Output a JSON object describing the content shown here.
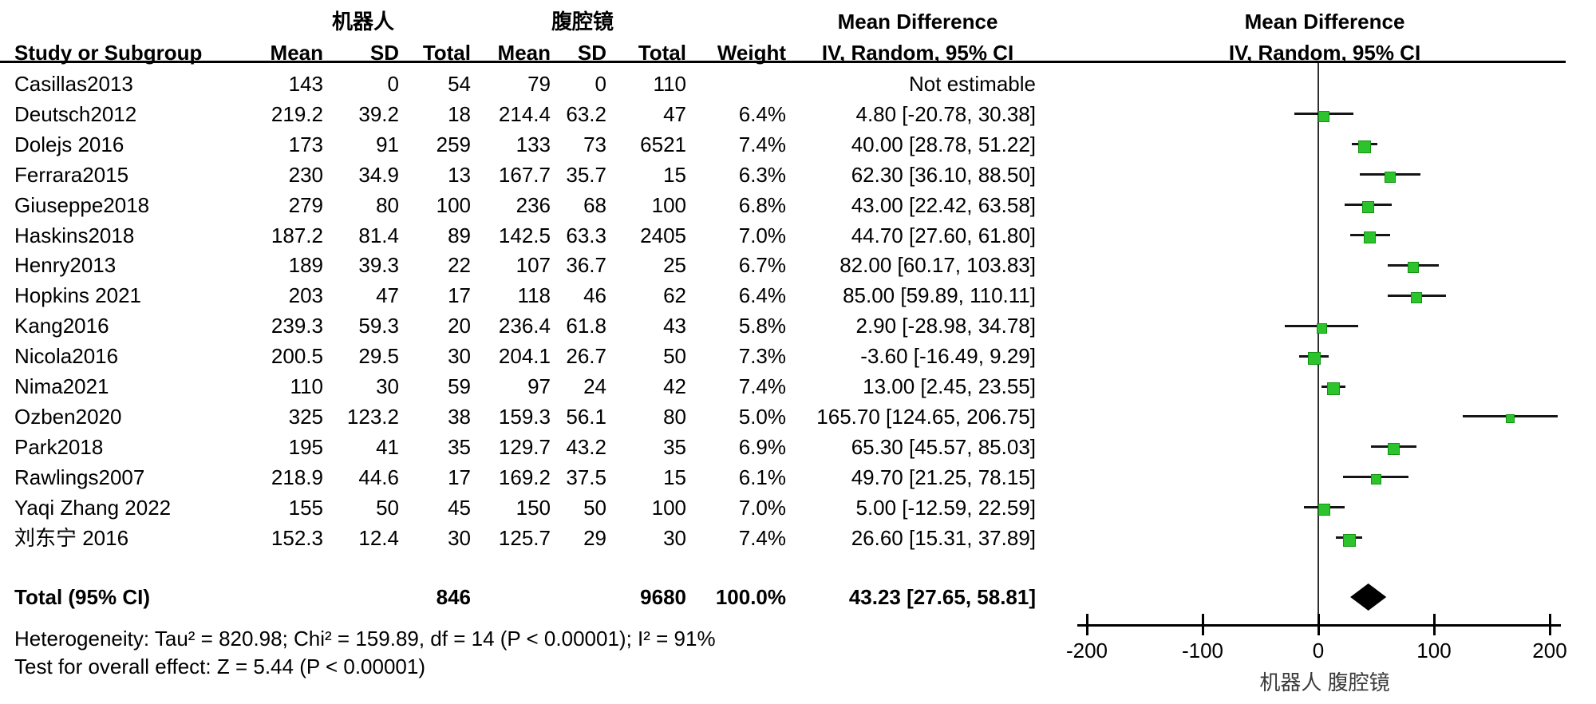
{
  "header": {
    "group1_label": "机器人",
    "group2_label": "腹腔镜",
    "study_col": "Study or Subgroup",
    "mean_col": "Mean",
    "sd_col": "SD",
    "total_col": "Total",
    "weight_col": "Weight",
    "md_col_title": "Mean Difference",
    "md_col_subtitle": "IV, Random, 95% CI",
    "plot_col_title": "Mean Difference",
    "plot_col_subtitle": "IV, Random, 95% CI"
  },
  "studies": [
    {
      "name": "Casillas2013",
      "mean1": "143",
      "sd1": "0",
      "total1": "54",
      "mean2": "79",
      "sd2": "0",
      "total2": "110",
      "weight": "",
      "ci_text": "Not estimable",
      "estimable": false,
      "est": null,
      "lo": null,
      "hi": null,
      "weight_num": 0
    },
    {
      "name": "Deutsch2012",
      "mean1": "219.2",
      "sd1": "39.2",
      "total1": "18",
      "mean2": "214.4",
      "sd2": "63.2",
      "total2": "47",
      "weight": "6.4%",
      "ci_text": "4.80 [-20.78, 30.38]",
      "estimable": true,
      "est": 4.8,
      "lo": -20.78,
      "hi": 30.38,
      "weight_num": 6.4
    },
    {
      "name": "Dolejs 2016",
      "mean1": "173",
      "sd1": "91",
      "total1": "259",
      "mean2": "133",
      "sd2": "73",
      "total2": "6521",
      "weight": "7.4%",
      "ci_text": "40.00 [28.78, 51.22]",
      "estimable": true,
      "est": 40.0,
      "lo": 28.78,
      "hi": 51.22,
      "weight_num": 7.4
    },
    {
      "name": "Ferrara2015",
      "mean1": "230",
      "sd1": "34.9",
      "total1": "13",
      "mean2": "167.7",
      "sd2": "35.7",
      "total2": "15",
      "weight": "6.3%",
      "ci_text": "62.30 [36.10, 88.50]",
      "estimable": true,
      "est": 62.3,
      "lo": 36.1,
      "hi": 88.5,
      "weight_num": 6.3
    },
    {
      "name": "Giuseppe2018",
      "mean1": "279",
      "sd1": "80",
      "total1": "100",
      "mean2": "236",
      "sd2": "68",
      "total2": "100",
      "weight": "6.8%",
      "ci_text": "43.00 [22.42, 63.58]",
      "estimable": true,
      "est": 43.0,
      "lo": 22.42,
      "hi": 63.58,
      "weight_num": 6.8
    },
    {
      "name": "Haskins2018",
      "mean1": "187.2",
      "sd1": "81.4",
      "total1": "89",
      "mean2": "142.5",
      "sd2": "63.3",
      "total2": "2405",
      "weight": "7.0%",
      "ci_text": "44.70 [27.60, 61.80]",
      "estimable": true,
      "est": 44.7,
      "lo": 27.6,
      "hi": 61.8,
      "weight_num": 7.0
    },
    {
      "name": "Henry2013",
      "mean1": "189",
      "sd1": "39.3",
      "total1": "22",
      "mean2": "107",
      "sd2": "36.7",
      "total2": "25",
      "weight": "6.7%",
      "ci_text": "82.00 [60.17, 103.83]",
      "estimable": true,
      "est": 82.0,
      "lo": 60.17,
      "hi": 103.83,
      "weight_num": 6.7
    },
    {
      "name": "Hopkins 2021",
      "mean1": "203",
      "sd1": "47",
      "total1": "17",
      "mean2": "118",
      "sd2": "46",
      "total2": "62",
      "weight": "6.4%",
      "ci_text": "85.00 [59.89, 110.11]",
      "estimable": true,
      "est": 85.0,
      "lo": 59.89,
      "hi": 110.11,
      "weight_num": 6.4
    },
    {
      "name": "Kang2016",
      "mean1": "239.3",
      "sd1": "59.3",
      "total1": "20",
      "mean2": "236.4",
      "sd2": "61.8",
      "total2": "43",
      "weight": "5.8%",
      "ci_text": "2.90 [-28.98, 34.78]",
      "estimable": true,
      "est": 2.9,
      "lo": -28.98,
      "hi": 34.78,
      "weight_num": 5.8
    },
    {
      "name": "Nicola2016",
      "mean1": "200.5",
      "sd1": "29.5",
      "total1": "30",
      "mean2": "204.1",
      "sd2": "26.7",
      "total2": "50",
      "weight": "7.3%",
      "ci_text": "-3.60 [-16.49, 9.29]",
      "estimable": true,
      "est": -3.6,
      "lo": -16.49,
      "hi": 9.29,
      "weight_num": 7.3
    },
    {
      "name": "Nima2021",
      "mean1": "110",
      "sd1": "30",
      "total1": "59",
      "mean2": "97",
      "sd2": "24",
      "total2": "42",
      "weight": "7.4%",
      "ci_text": "13.00 [2.45, 23.55]",
      "estimable": true,
      "est": 13.0,
      "lo": 2.45,
      "hi": 23.55,
      "weight_num": 7.4
    },
    {
      "name": "Ozben2020",
      "mean1": "325",
      "sd1": "123.2",
      "total1": "38",
      "mean2": "159.3",
      "sd2": "56.1",
      "total2": "80",
      "weight": "5.0%",
      "ci_text": "165.70 [124.65, 206.75]",
      "estimable": true,
      "est": 165.7,
      "lo": 124.65,
      "hi": 206.75,
      "weight_num": 5.0
    },
    {
      "name": "Park2018",
      "mean1": "195",
      "sd1": "41",
      "total1": "35",
      "mean2": "129.7",
      "sd2": "43.2",
      "total2": "35",
      "weight": "6.9%",
      "ci_text": "65.30 [45.57, 85.03]",
      "estimable": true,
      "est": 65.3,
      "lo": 45.57,
      "hi": 85.03,
      "weight_num": 6.9
    },
    {
      "name": "Rawlings2007",
      "mean1": "218.9",
      "sd1": "44.6",
      "total1": "17",
      "mean2": "169.2",
      "sd2": "37.5",
      "total2": "15",
      "weight": "6.1%",
      "ci_text": "49.70 [21.25, 78.15]",
      "estimable": true,
      "est": 49.7,
      "lo": 21.25,
      "hi": 78.15,
      "weight_num": 6.1
    },
    {
      "name": "Yaqi Zhang 2022",
      "mean1": "155",
      "sd1": "50",
      "total1": "45",
      "mean2": "150",
      "sd2": "50",
      "total2": "100",
      "weight": "7.0%",
      "ci_text": "5.00 [-12.59, 22.59]",
      "estimable": true,
      "est": 5.0,
      "lo": -12.59,
      "hi": 22.59,
      "weight_num": 7.0
    },
    {
      "name": "刘东宁 2016",
      "mean1": "152.3",
      "sd1": "12.4",
      "total1": "30",
      "mean2": "125.7",
      "sd2": "29",
      "total2": "30",
      "weight": "7.4%",
      "ci_text": "26.60 [15.31, 37.89]",
      "estimable": true,
      "est": 26.6,
      "lo": 15.31,
      "hi": 37.89,
      "weight_num": 7.4
    }
  ],
  "total": {
    "label": "Total (95% CI)",
    "total1": "846",
    "total2": "9680",
    "weight": "100.0%",
    "ci_text": "43.23 [27.65, 58.81]",
    "est": 43.23,
    "lo": 27.65,
    "hi": 58.81
  },
  "footer": {
    "heterogeneity": "Heterogeneity: Tau² = 820.98; Chi² = 159.89, df = 14 (P < 0.00001); I² = 91%",
    "overall_effect": "Test for overall effect: Z = 5.44 (P < 0.00001)"
  },
  "axis": {
    "ticks": [
      -200,
      -100,
      0,
      100,
      200
    ],
    "tick_labels": [
      "-200",
      "-100",
      "0",
      "100",
      "200"
    ],
    "bottom_group_label": "机器人  腹腔镜"
  },
  "colors": {
    "square_green": "#2cc32c",
    "ci_black": "#151515",
    "diamond_black": "#000000"
  },
  "chart_data": {
    "type": "forest",
    "title": "Mean Difference, IV, Random, 95% CI (机器人 vs 腹腔镜)",
    "xlim": [
      -200,
      200
    ],
    "x_ticks": [
      -200,
      -100,
      0,
      100,
      200
    ],
    "favours_label": "机器人  腹腔镜",
    "studies": [
      {
        "study": "Casillas2013",
        "md": null,
        "ci": [
          null,
          null
        ],
        "weight_pct": null,
        "note": "Not estimable"
      },
      {
        "study": "Deutsch2012",
        "md": 4.8,
        "ci": [
          -20.78,
          30.38
        ],
        "weight_pct": 6.4
      },
      {
        "study": "Dolejs 2016",
        "md": 40.0,
        "ci": [
          28.78,
          51.22
        ],
        "weight_pct": 7.4
      },
      {
        "study": "Ferrara2015",
        "md": 62.3,
        "ci": [
          36.1,
          88.5
        ],
        "weight_pct": 6.3
      },
      {
        "study": "Giuseppe2018",
        "md": 43.0,
        "ci": [
          22.42,
          63.58
        ],
        "weight_pct": 6.8
      },
      {
        "study": "Haskins2018",
        "md": 44.7,
        "ci": [
          27.6,
          61.8
        ],
        "weight_pct": 7.0
      },
      {
        "study": "Henry2013",
        "md": 82.0,
        "ci": [
          60.17,
          103.83
        ],
        "weight_pct": 6.7
      },
      {
        "study": "Hopkins 2021",
        "md": 85.0,
        "ci": [
          59.89,
          110.11
        ],
        "weight_pct": 6.4
      },
      {
        "study": "Kang2016",
        "md": 2.9,
        "ci": [
          -28.98,
          34.78
        ],
        "weight_pct": 5.8
      },
      {
        "study": "Nicola2016",
        "md": -3.6,
        "ci": [
          -16.49,
          9.29
        ],
        "weight_pct": 7.3
      },
      {
        "study": "Nima2021",
        "md": 13.0,
        "ci": [
          2.45,
          23.55
        ],
        "weight_pct": 7.4
      },
      {
        "study": "Ozben2020",
        "md": 165.7,
        "ci": [
          124.65,
          206.75
        ],
        "weight_pct": 5.0
      },
      {
        "study": "Park2018",
        "md": 65.3,
        "ci": [
          45.57,
          85.03
        ],
        "weight_pct": 6.9
      },
      {
        "study": "Rawlings2007",
        "md": 49.7,
        "ci": [
          21.25,
          78.15
        ],
        "weight_pct": 6.1
      },
      {
        "study": "Yaqi Zhang 2022",
        "md": 5.0,
        "ci": [
          -12.59,
          22.59
        ],
        "weight_pct": 7.0
      },
      {
        "study": "刘东宁 2016",
        "md": 26.6,
        "ci": [
          15.31,
          37.89
        ],
        "weight_pct": 7.4
      }
    ],
    "pooled": {
      "md": 43.23,
      "ci": [
        27.65,
        58.81
      ],
      "weight_pct": 100.0
    },
    "heterogeneity": {
      "tau2": 820.98,
      "chi2": 159.89,
      "df": 14,
      "p": "< 0.00001",
      "i2_pct": 91
    },
    "overall_effect": {
      "z": 5.44,
      "p": "< 0.00001"
    }
  }
}
